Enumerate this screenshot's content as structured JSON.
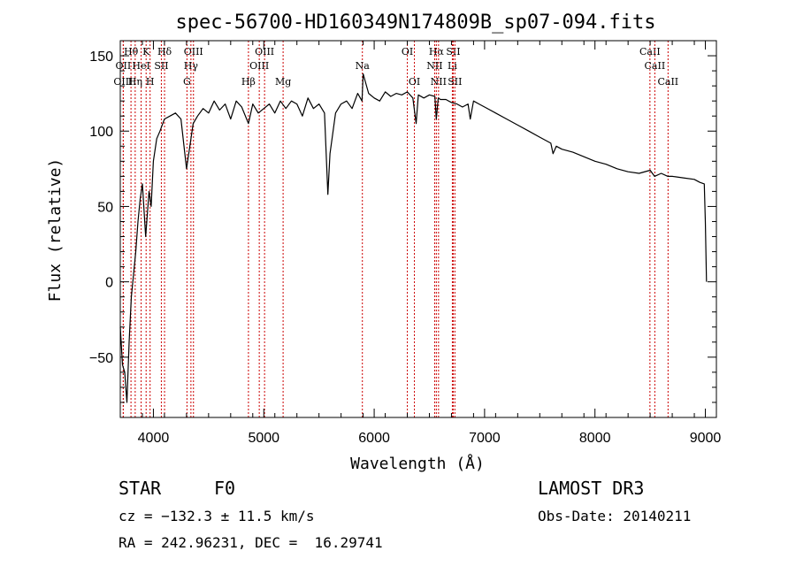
{
  "chart_data": {
    "type": "line",
    "title": "spec-56700-HD160349N174809B_sp07-094.fits",
    "xlabel": "Wavelength (Å)",
    "ylabel": "Flux (relative)",
    "xlim": [
      3700,
      9100
    ],
    "ylim": [
      -90,
      160
    ],
    "x_ticks": [
      4000,
      5000,
      6000,
      7000,
      8000,
      9000
    ],
    "y_ticks": [
      -50,
      0,
      50,
      100,
      150
    ],
    "grid": false,
    "series": [
      {
        "name": "spectrum",
        "x": [
          3700,
          3720,
          3740,
          3760,
          3780,
          3800,
          3820,
          3840,
          3860,
          3880,
          3900,
          3930,
          3960,
          3980,
          4000,
          4030,
          4060,
          4100,
          4150,
          4200,
          4250,
          4300,
          4340,
          4360,
          4400,
          4450,
          4500,
          4550,
          4600,
          4650,
          4700,
          4750,
          4800,
          4861,
          4900,
          4950,
          5000,
          5050,
          5100,
          5150,
          5200,
          5250,
          5300,
          5350,
          5400,
          5450,
          5500,
          5550,
          5580,
          5600,
          5650,
          5700,
          5750,
          5800,
          5850,
          5890,
          5900,
          5950,
          6000,
          6050,
          6100,
          6150,
          6200,
          6250,
          6300,
          6350,
          6380,
          6400,
          6450,
          6500,
          6550,
          6563,
          6580,
          6600,
          6650,
          6700,
          6750,
          6800,
          6850,
          6870,
          6900,
          6950,
          7000,
          7100,
          7200,
          7300,
          7400,
          7500,
          7600,
          7620,
          7650,
          7700,
          7800,
          7900,
          8000,
          8100,
          8200,
          8300,
          8400,
          8500,
          8540,
          8600,
          8660,
          8700,
          8800,
          8900,
          8950,
          8990,
          9000,
          9010
        ],
        "y": [
          -30,
          -55,
          -60,
          -80,
          -40,
          -10,
          5,
          20,
          40,
          55,
          65,
          30,
          60,
          50,
          80,
          95,
          100,
          108,
          110,
          112,
          108,
          75,
          95,
          105,
          110,
          115,
          112,
          120,
          114,
          118,
          108,
          120,
          116,
          105,
          118,
          112,
          115,
          118,
          112,
          120,
          115,
          120,
          118,
          110,
          122,
          115,
          118,
          112,
          58,
          85,
          112,
          118,
          120,
          115,
          125,
          120,
          138,
          125,
          122,
          120,
          126,
          123,
          125,
          124,
          126,
          122,
          105,
          124,
          122,
          124,
          123,
          108,
          122,
          121,
          121,
          119,
          118,
          116,
          118,
          108,
          120,
          118,
          116,
          112,
          108,
          104,
          100,
          96,
          92,
          85,
          90,
          88,
          86,
          83,
          80,
          78,
          75,
          73,
          72,
          74,
          70,
          72,
          70,
          70,
          69,
          68,
          66,
          65,
          40,
          0
        ]
      }
    ],
    "spectral_lines": [
      {
        "name": "Hθ",
        "wavelength": 3797,
        "row": 1
      },
      {
        "name": "K",
        "wavelength": 3934,
        "row": 1
      },
      {
        "name": "Hδ",
        "wavelength": 4101,
        "row": 1
      },
      {
        "name": "OIII",
        "wavelength": 4363,
        "row": 1
      },
      {
        "name": "OIII",
        "wavelength": 5007,
        "row": 1
      },
      {
        "name": "OI",
        "wavelength": 6300,
        "row": 1
      },
      {
        "name": "Hα",
        "wavelength": 6563,
        "row": 1
      },
      {
        "name": "SII",
        "wavelength": 6716,
        "row": 1
      },
      {
        "name": "CaII",
        "wavelength": 8498,
        "row": 1
      },
      {
        "name": "OII",
        "wavelength": 3727,
        "row": 2
      },
      {
        "name": "HeI",
        "wavelength": 3889,
        "row": 2
      },
      {
        "name": "SII",
        "wavelength": 4072,
        "row": 2
      },
      {
        "name": "Hγ",
        "wavelength": 4340,
        "row": 2
      },
      {
        "name": "OIII",
        "wavelength": 4959,
        "row": 2
      },
      {
        "name": "Na",
        "wavelength": 5893,
        "row": 2
      },
      {
        "name": "NII",
        "wavelength": 6548,
        "row": 2
      },
      {
        "name": "Li",
        "wavelength": 6708,
        "row": 2
      },
      {
        "name": "CaII",
        "wavelength": 8542,
        "row": 2
      },
      {
        "name": "OIII",
        "wavelength": 3727,
        "row": 3
      },
      {
        "name": "Hη",
        "wavelength": 3835,
        "row": 3
      },
      {
        "name": "H",
        "wavelength": 3970,
        "row": 3
      },
      {
        "name": "G",
        "wavelength": 4304,
        "row": 3
      },
      {
        "name": "Hβ",
        "wavelength": 4861,
        "row": 3
      },
      {
        "name": "Mg",
        "wavelength": 5175,
        "row": 3
      },
      {
        "name": "OI",
        "wavelength": 6364,
        "row": 3
      },
      {
        "name": "NII",
        "wavelength": 6583,
        "row": 3
      },
      {
        "name": "SII",
        "wavelength": 6731,
        "row": 3
      },
      {
        "name": "CaII",
        "wavelength": 8662,
        "row": 3
      }
    ]
  },
  "info": {
    "object_class": "STAR",
    "subclass": "F0",
    "survey": "LAMOST DR3",
    "redshift_line": "cz = −132.3 ± 11.5 km/s",
    "obs_date": "Obs-Date: 20140211",
    "coords": "RA = 242.96231, DEC =  16.29741"
  }
}
